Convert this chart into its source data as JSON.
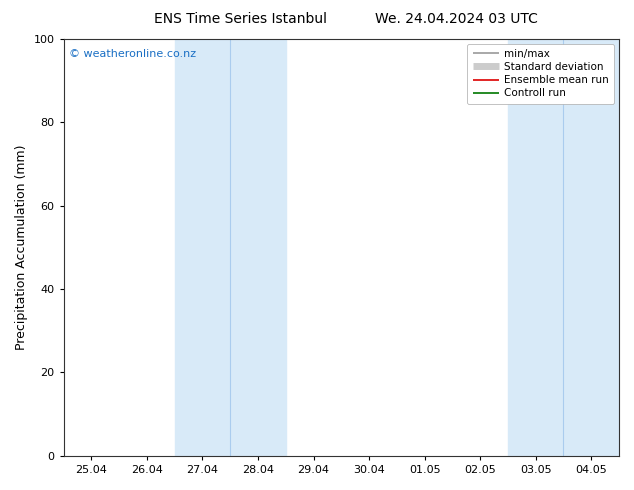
{
  "title_left": "ENS Time Series Istanbul",
  "title_right": "We. 24.04.2024 03 UTC",
  "ylabel": "Precipitation Accumulation (mm)",
  "ylim": [
    0,
    100
  ],
  "yticks": [
    0,
    20,
    40,
    60,
    80,
    100
  ],
  "xtick_labels": [
    "25.04",
    "26.04",
    "27.04",
    "28.04",
    "29.04",
    "30.04",
    "01.05",
    "02.05",
    "03.05",
    "04.05"
  ],
  "shaded_bands": [
    {
      "xstart": 2,
      "xend": 4
    },
    {
      "xstart": 8,
      "xend": 10
    }
  ],
  "divider_lines": [
    3,
    9
  ],
  "shade_color": "#d8eaf8",
  "background_color": "#ffffff",
  "watermark": "© weatheronline.co.nz",
  "watermark_color": "#1a6fc4",
  "legend_entries": [
    {
      "label": "min/max",
      "color": "#999999",
      "lw": 1.2
    },
    {
      "label": "Standard deviation",
      "color": "#cccccc",
      "lw": 5
    },
    {
      "label": "Ensemble mean run",
      "color": "#dd0000",
      "lw": 1.2
    },
    {
      "label": "Controll run",
      "color": "#007700",
      "lw": 1.2
    }
  ],
  "title_fontsize": 10,
  "ylabel_fontsize": 9,
  "tick_fontsize": 8,
  "legend_fontsize": 7.5,
  "watermark_fontsize": 8
}
